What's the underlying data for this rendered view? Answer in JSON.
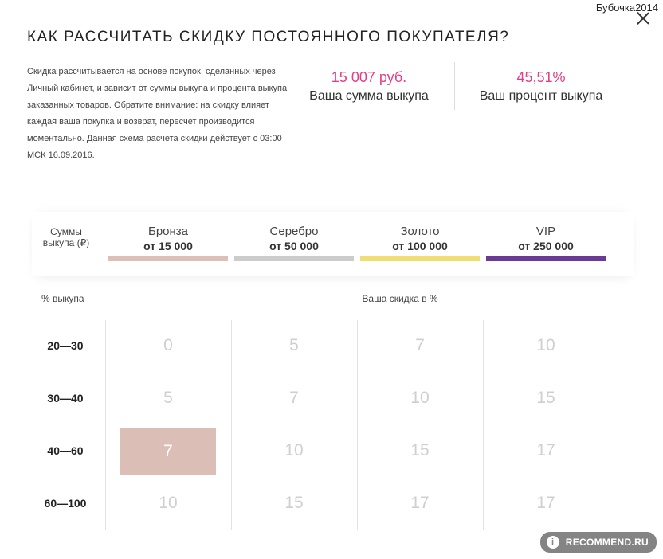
{
  "user": {
    "name": "Бубочка2014"
  },
  "dialog": {
    "title": "Как рассчитать скидку постоянного покупателя?",
    "description": "Скидка рассчитывается на основе покупок, сделанных через Личный кабинет, и зависит от суммы выкупа и процента выкупа заказанных товаров. Обратите внимание: на скидку влияет каждая ваша покупка и возврат, пересчет производится моментально. Данная схема расчета скидки действует с 03:00 МСК 16.09.2016."
  },
  "stats": {
    "sum": {
      "value": "15 007 руб.",
      "label": "Ваша сумма выкупа"
    },
    "percent": {
      "value": "45,51%",
      "label": "Ваш процент выкупа"
    }
  },
  "table": {
    "sums_label": "Суммы выкупа (₽)",
    "percent_label": "% выкупа",
    "discount_label": "Ваша скидка в %",
    "tiers": [
      {
        "name": "Бронза",
        "threshold": "от 15 000",
        "color": "#dcc0b6"
      },
      {
        "name": "Серебро",
        "threshold": "от 50 000",
        "color": "#cccccc"
      },
      {
        "name": "Золото",
        "threshold": "от 100 000",
        "color": "#f0dd73"
      },
      {
        "name": "VIP",
        "threshold": "от 250 000",
        "color": "#6b3a96"
      }
    ],
    "rows": [
      {
        "label": "20—30",
        "values": [
          "0",
          "5",
          "7",
          "10"
        ]
      },
      {
        "label": "30—40",
        "values": [
          "5",
          "7",
          "10",
          "15"
        ]
      },
      {
        "label": "40—60",
        "values": [
          "7",
          "10",
          "15",
          "17"
        ]
      },
      {
        "label": "60—100",
        "values": [
          "10",
          "15",
          "17",
          "17"
        ]
      }
    ],
    "active_cell": {
      "row": 2,
      "col": 0
    }
  },
  "watermark": {
    "text": "RECOMMEND.RU",
    "badge": "i"
  }
}
